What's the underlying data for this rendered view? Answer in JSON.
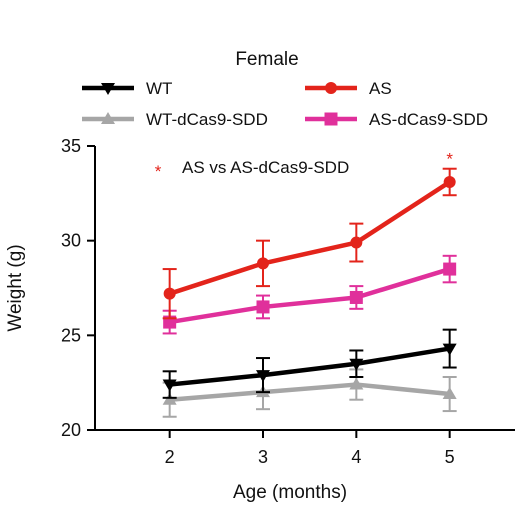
{
  "chart_data": {
    "type": "line",
    "title": "Female",
    "xlabel": "Age (months)",
    "ylabel": "Weight (g)",
    "x": [
      2,
      3,
      4,
      5
    ],
    "xlim": [
      1.2,
      5.7
    ],
    "ylim": [
      20,
      35
    ],
    "xticks": [
      "2",
      "3",
      "4",
      "5"
    ],
    "yticks": [
      "20",
      "25",
      "30",
      "35"
    ],
    "grid": false,
    "legend_position": "top",
    "series": [
      {
        "name": "WT",
        "color": "#000000",
        "marker": "triangle-down",
        "values": [
          22.4,
          22.9,
          23.5,
          24.3
        ],
        "errors": [
          0.7,
          0.9,
          0.7,
          1.0
        ]
      },
      {
        "name": "AS",
        "color": "#e3241b",
        "marker": "circle",
        "values": [
          27.2,
          28.8,
          29.9,
          33.1
        ],
        "errors": [
          1.3,
          1.2,
          1.0,
          0.7
        ]
      },
      {
        "name": "WT-dCas9-SDD",
        "color": "#a6a6a6",
        "marker": "triangle-up",
        "values": [
          21.6,
          22.0,
          22.4,
          21.9
        ],
        "errors": [
          0.9,
          0.9,
          0.8,
          0.9
        ]
      },
      {
        "name": "AS-dCas9-SDD",
        "color": "#e0309b",
        "marker": "square",
        "values": [
          25.7,
          26.5,
          27.0,
          28.5
        ],
        "errors": [
          0.6,
          0.6,
          0.6,
          0.7
        ]
      }
    ],
    "annotation": {
      "symbol": "*",
      "text": "AS vs AS-dCas9-SDD",
      "color": "#e3241b"
    },
    "significance": [
      {
        "x": 5,
        "symbol": "*",
        "color": "#e3241b"
      }
    ]
  }
}
